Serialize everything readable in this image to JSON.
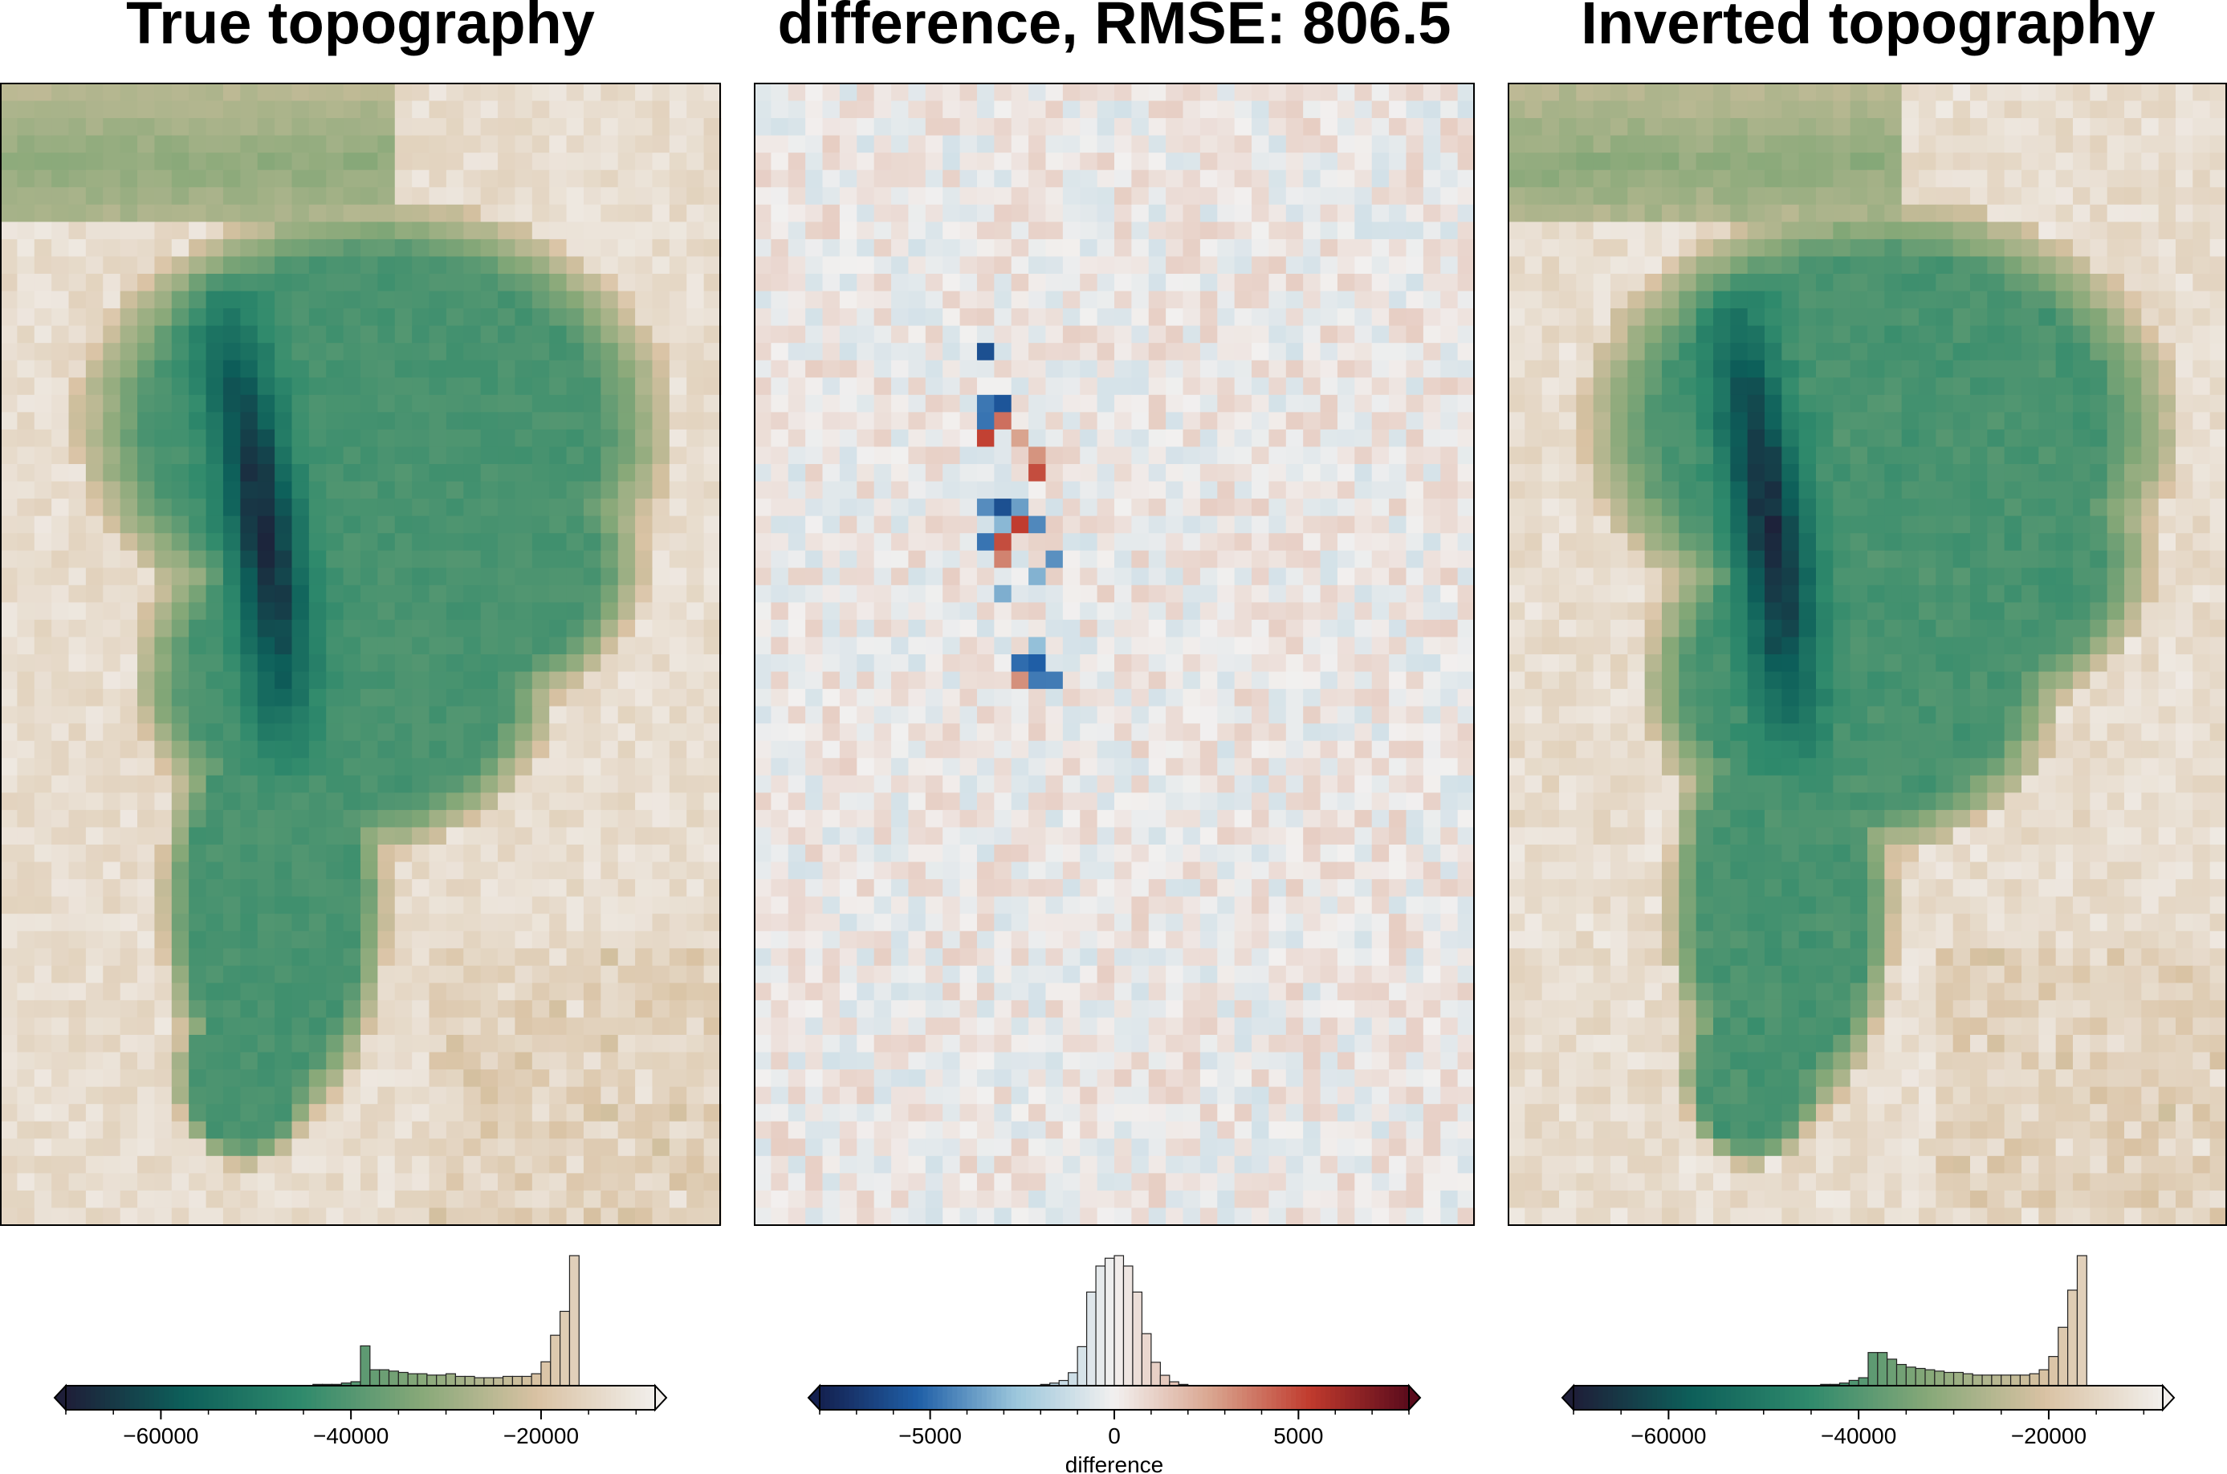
{
  "chart_data": [
    {
      "type": "heatmap",
      "title": "True topography",
      "colormap": "gist_earth-like (dark navy → teal → green → tan → white)",
      "color_stops": [
        "#1e1e38",
        "#0d5f5a",
        "#2f8a6c",
        "#86a878",
        "#d9c2a3",
        "#f2efec"
      ],
      "vmin": -70000,
      "vmax": -8000,
      "colorbar": {
        "ticks": [
          -60000,
          -40000,
          -20000
        ],
        "tick_labels": [
          "−60000",
          "−40000",
          "−20000"
        ],
        "label": "",
        "extend": "both"
      },
      "histogram": {
        "bin_edges_start": -70000,
        "bin_width": 1000,
        "counts": [
          0,
          0,
          0,
          0,
          0,
          0,
          0,
          0,
          0,
          0,
          0,
          0,
          0,
          0,
          0,
          0,
          0,
          0,
          0,
          0,
          0,
          0,
          0,
          0,
          0,
          0,
          1,
          1,
          1,
          2,
          3,
          30,
          12,
          12,
          11,
          10,
          9,
          9,
          8,
          8,
          9,
          7,
          7,
          6,
          6,
          6,
          7,
          7,
          7,
          9,
          18,
          38,
          56,
          98
        ]
      }
    },
    {
      "type": "heatmap",
      "title": "difference, RMSE: 806.5",
      "colormap": "diverging blue-white-red",
      "color_stops": [
        "#14204f",
        "#1f5fa7",
        "#9cc7dc",
        "#f2f0ef",
        "#d9a48e",
        "#c03a2d",
        "#5a0b1c"
      ],
      "vmin": -8000,
      "vmax": 8000,
      "colorbar": {
        "ticks": [
          -5000,
          0,
          5000
        ],
        "tick_labels": [
          "−5000",
          "0",
          "5000"
        ],
        "label": "difference",
        "extend": "both"
      },
      "histogram": {
        "bin_edges_start": -2000,
        "bin_width": 250,
        "counts": [
          1,
          2,
          4,
          10,
          30,
          72,
          92,
          98,
          100,
          92,
          72,
          40,
          18,
          8,
          3,
          1
        ]
      }
    },
    {
      "type": "heatmap",
      "title": "Inverted topography",
      "colormap": "gist_earth-like (dark navy → teal → green → tan → white)",
      "color_stops": [
        "#1e1e38",
        "#0d5f5a",
        "#2f8a6c",
        "#86a878",
        "#d9c2a3",
        "#f2efec"
      ],
      "vmin": -70000,
      "vmax": -8000,
      "colorbar": {
        "ticks": [
          -60000,
          -40000,
          -20000
        ],
        "tick_labels": [
          "−60000",
          "−40000",
          "−20000"
        ],
        "label": "",
        "extend": "both"
      },
      "histogram": {
        "bin_edges_start": -70000,
        "bin_width": 1000,
        "counts": [
          0,
          0,
          0,
          0,
          0,
          0,
          0,
          0,
          0,
          0,
          0,
          0,
          0,
          0,
          0,
          0,
          0,
          0,
          0,
          0,
          0,
          0,
          0,
          0,
          0,
          0,
          1,
          1,
          2,
          4,
          6,
          25,
          25,
          20,
          16,
          14,
          13,
          12,
          11,
          10,
          10,
          9,
          8,
          8,
          8,
          8,
          8,
          8,
          9,
          12,
          22,
          44,
          72,
          98
        ]
      }
    }
  ]
}
